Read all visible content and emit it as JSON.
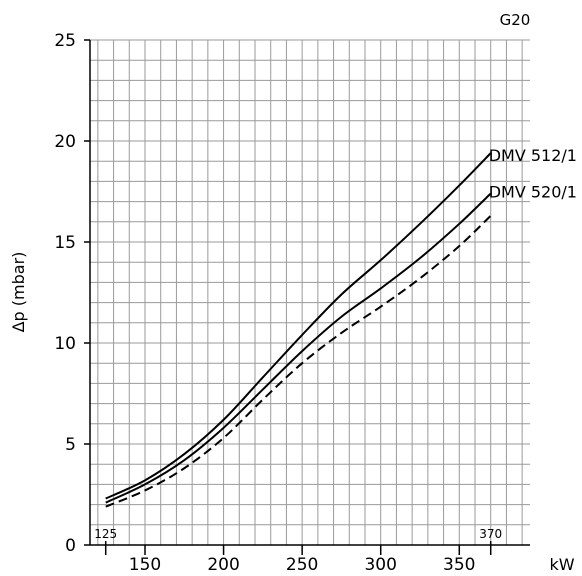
{
  "chart_data": {
    "type": "line",
    "gas_label": "G20",
    "ylabel": "Δp (mbar)",
    "xunit_label": "kW",
    "xlim": [
      115,
      395
    ],
    "ylim": [
      0,
      25
    ],
    "x_ticks": [
      150,
      200,
      250,
      300,
      350
    ],
    "y_ticks": [
      0,
      5,
      10,
      15,
      20,
      25
    ],
    "x_range_markers": [
      125,
      370
    ],
    "grid": true,
    "series": [
      {
        "name": "DMV 512/1",
        "style": "solid",
        "x": [
          125,
          150,
          175,
          200,
          225,
          250,
          275,
          300,
          325,
          350,
          370
        ],
        "y": [
          2.3,
          3.2,
          4.5,
          6.2,
          8.3,
          10.4,
          12.4,
          14.1,
          15.9,
          17.8,
          19.4
        ]
      },
      {
        "name": "DMV 520/1",
        "style": "solid",
        "x": [
          125,
          150,
          175,
          200,
          225,
          250,
          275,
          300,
          325,
          350,
          370
        ],
        "y": [
          2.1,
          3.0,
          4.2,
          5.8,
          7.7,
          9.6,
          11.3,
          12.7,
          14.2,
          15.9,
          17.4
        ]
      },
      {
        "style": "dashed",
        "x": [
          125,
          150,
          175,
          200,
          225,
          250,
          275,
          300,
          325,
          350,
          370
        ],
        "y": [
          1.9,
          2.7,
          3.8,
          5.3,
          7.2,
          9.0,
          10.5,
          11.8,
          13.2,
          14.8,
          16.3
        ]
      }
    ]
  }
}
